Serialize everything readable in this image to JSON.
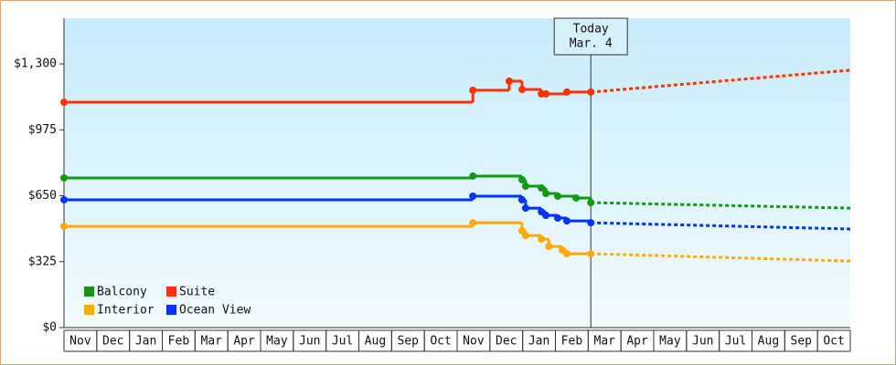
{
  "chart_data": {
    "type": "step-line",
    "categories": [
      "Nov",
      "Dec",
      "Jan",
      "Feb",
      "Mar",
      "Apr",
      "May",
      "Jun",
      "Jul",
      "Aug",
      "Sep",
      "Oct",
      "Nov",
      "Dec",
      "Jan",
      "Feb",
      "Mar",
      "Apr",
      "May",
      "Jun",
      "Jul",
      "Aug",
      "Sep",
      "Oct"
    ],
    "ylim": [
      0,
      1525
    ],
    "yticks": [
      {
        "value": 0,
        "label": "$0"
      },
      {
        "value": 325,
        "label": "$325"
      },
      {
        "value": 650,
        "label": "$650"
      },
      {
        "value": 975,
        "label": "$975"
      },
      {
        "value": 1300,
        "label": "$1,300"
      }
    ],
    "today": {
      "x": 16.08,
      "label": "Today",
      "date": "Mar. 4"
    },
    "legend": "lower left",
    "series": [
      {
        "name": "Balcony",
        "color": "#119911",
        "x": [
          0,
          12.48,
          13.98,
          14.09,
          14.57,
          14.71,
          15.07,
          15.63,
          16.08
        ],
        "values": [
          738,
          747,
          729,
          697,
          688,
          661,
          648,
          639,
          616
        ],
        "projection": {
          "x": [
            16.08,
            24
          ],
          "values": [
            616,
            589
          ]
        }
      },
      {
        "name": "Suite",
        "color": "#ff3300",
        "x": [
          0,
          12.48,
          13.59,
          13.98,
          14.57,
          14.71,
          15.35,
          16.08
        ],
        "values": [
          1111,
          1170,
          1215,
          1174,
          1152,
          1152,
          1161,
          1161
        ],
        "projection": {
          "x": [
            16.08,
            24
          ],
          "values": [
            1161,
            1269
          ]
        }
      },
      {
        "name": "Interior",
        "color": "#ffaa00",
        "x": [
          0,
          12.48,
          13.98,
          14.09,
          14.57,
          14.8,
          15.21,
          15.35,
          16.08
        ],
        "values": [
          499,
          517,
          477,
          454,
          436,
          400,
          382,
          364,
          364
        ],
        "projection": {
          "x": [
            16.08,
            24
          ],
          "values": [
            364,
            328
          ]
        }
      },
      {
        "name": "Ocean View",
        "color": "#0033ff",
        "x": [
          0,
          12.48,
          13.98,
          14.09,
          14.57,
          14.71,
          15.07,
          15.35,
          16.08
        ],
        "values": [
          630,
          648,
          630,
          589,
          571,
          553,
          540,
          526,
          517
        ],
        "projection": {
          "x": [
            16.08,
            24
          ],
          "values": [
            517,
            486
          ]
        }
      }
    ]
  }
}
